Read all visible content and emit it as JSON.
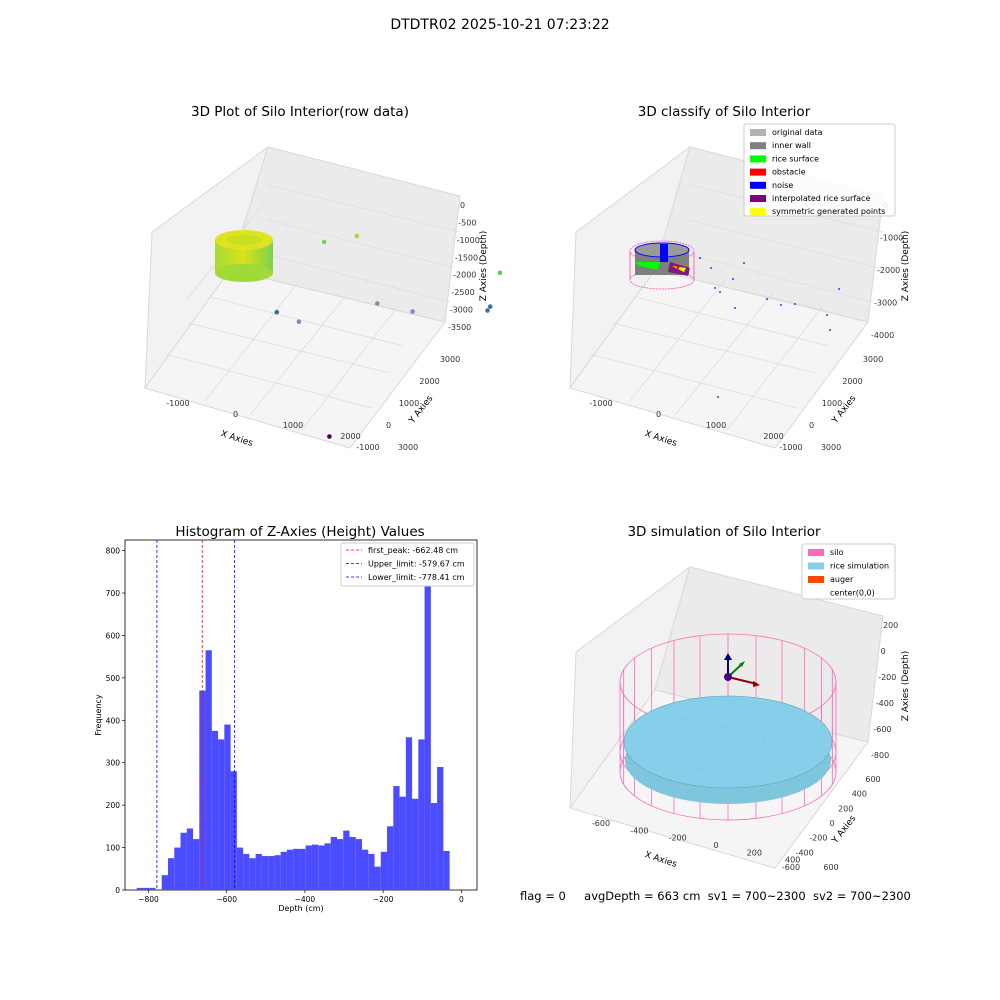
{
  "figure": {
    "suptitle": "DTDTR02 2025-10-21 07:23:22",
    "footer": {
      "flag": "flag = 0",
      "avg_depth": "avgDepth = 663 cm",
      "sv1": "sv1 = 700~2300",
      "sv2": "sv2 = 700~2300"
    }
  },
  "chart_data": [
    {
      "type": "scatter",
      "title": "3D Plot of Silo Interior(row data)",
      "xlabel": "X Axies",
      "ylabel": "Y Axies",
      "zlabel": "Z Axies (Depth)",
      "x_ticks": [
        "-1000",
        "0",
        "1000",
        "2000",
        "3000"
      ],
      "y_ticks": [
        "-1000",
        "0",
        "1000",
        "2000",
        "3000"
      ],
      "z_ticks": [
        "0",
        "-500",
        "-1000",
        "-1500",
        "-2000",
        "-2500",
        "-3000",
        "-3500"
      ],
      "colormap": "viridis",
      "clusters": [
        {
          "name": "silo ring",
          "x": 0,
          "y": 0,
          "z": -1000,
          "color": "#b5de2b"
        }
      ],
      "points": [
        {
          "x": 600,
          "y": 1200,
          "z": -1400,
          "color": "#7ad151"
        },
        {
          "x": 900,
          "y": 1600,
          "z": -1500,
          "color": "#a0da39"
        },
        {
          "x": 2700,
          "y": 2500,
          "z": -2500,
          "color": "#5ec962"
        },
        {
          "x": 400,
          "y": 200,
          "z": -2200,
          "color": "#2a788e"
        },
        {
          "x": 700,
          "y": 300,
          "z": -2400,
          "color": "#8a86b5"
        },
        {
          "x": 1400,
          "y": 1300,
          "z": -2600,
          "color": "#8a86b5"
        },
        {
          "x": 1800,
          "y": 1600,
          "z": -2900,
          "color": "#8a86b5"
        },
        {
          "x": 2600,
          "y": 2400,
          "z": -3200,
          "color": "#3e6fa9"
        },
        {
          "x": 2500,
          "y": 2500,
          "z": -3400,
          "color": "#3e6fa9"
        },
        {
          "x": 1700,
          "y": -600,
          "z": -3900,
          "color": "#440154"
        }
      ]
    },
    {
      "type": "scatter",
      "title": "3D classify of Silo Interior",
      "xlabel": "X Axies",
      "ylabel": "Y Axies",
      "zlabel": "Z Axies (Depth)",
      "x_ticks": [
        "-1000",
        "0",
        "1000",
        "2000",
        "3000"
      ],
      "y_ticks": [
        "-1000",
        "0",
        "1000",
        "2000",
        "3000"
      ],
      "z_ticks": [
        "0",
        "-1000",
        "-2000",
        "-3000",
        "-4000"
      ],
      "legend_position": "top-right",
      "legend": [
        {
          "label": "original data",
          "color": "#b3b3b3"
        },
        {
          "label": "inner wall",
          "color": "#808080"
        },
        {
          "label": "rice surface",
          "color": "#00ff00"
        },
        {
          "label": "obstacle",
          "color": "#ff0000"
        },
        {
          "label": "noise",
          "color": "#0000ff"
        },
        {
          "label": "interpolated rice surface",
          "color": "#800080"
        },
        {
          "label": "symmetric generated points",
          "color": "#ffff00"
        }
      ]
    },
    {
      "type": "bar",
      "title": "Histogram of Z-Axies (Height) Values",
      "xlabel": "Depth (cm)",
      "ylabel": "Frequency",
      "xlim": [
        -860,
        40
      ],
      "ylim": [
        0,
        825
      ],
      "x_ticks": [
        -800,
        -600,
        -400,
        -200,
        0
      ],
      "y_ticks": [
        0,
        100,
        200,
        300,
        400,
        500,
        600,
        700,
        800
      ],
      "bar_color": "#4b4bff",
      "bin_start": -830,
      "bin_width": 16.0,
      "values": [
        5,
        5,
        5,
        0,
        35,
        75,
        100,
        135,
        145,
        120,
        470,
        565,
        375,
        355,
        390,
        280,
        100,
        85,
        75,
        85,
        80,
        80,
        82,
        90,
        95,
        97,
        97,
        105,
        107,
        105,
        110,
        125,
        120,
        140,
        125,
        120,
        95,
        85,
        55,
        90,
        150,
        245,
        220,
        360,
        215,
        355,
        780,
        205,
        290,
        92
      ],
      "reference_lines": [
        {
          "label": "first_peak: -662.48 cm",
          "x": -662.48,
          "color": "#ff0000"
        },
        {
          "label": "Upper_limit: -579.67 cm",
          "x": -579.67,
          "color": "#0000ff"
        },
        {
          "label": "Lower_limit: -778.41 cm",
          "x": -778.41,
          "color": "#0000ff"
        }
      ],
      "legend_position": "top-right"
    },
    {
      "type": "scatter",
      "title": "3D simulation of Silo Interior",
      "xlabel": "X Axies",
      "ylabel": "Y Axies",
      "zlabel": "Z Axies (Depth)",
      "x_ticks": [
        "-600",
        "-400",
        "-200",
        "0",
        "200",
        "400",
        "600"
      ],
      "y_ticks": [
        "-600",
        "-400",
        "-200",
        "0",
        "200",
        "400",
        "600"
      ],
      "z_ticks": [
        "200",
        "0",
        "-200",
        "-400",
        "-600",
        "-800"
      ],
      "legend_position": "top-right",
      "legend": [
        {
          "label": "silo",
          "color": "#ff69b4"
        },
        {
          "label": "rice simulation",
          "color": "#87ceeb"
        },
        {
          "label": "auger",
          "color": "#ff4500"
        },
        {
          "label": "center(0,0)",
          "color": "#ffffff"
        }
      ]
    }
  ]
}
